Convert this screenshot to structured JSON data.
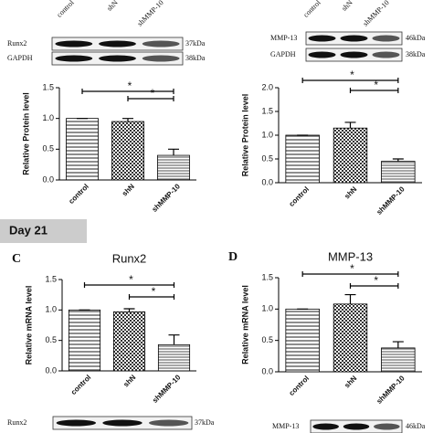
{
  "chart_data": [
    {
      "type": "bar",
      "y_label": "Relative Protein level",
      "categories": [
        "control",
        "shN",
        "shMMP-10"
      ],
      "values": [
        1.0,
        0.95,
        0.4
      ],
      "errors": [
        0,
        0.05,
        0.1
      ],
      "ylim": [
        0,
        1.5
      ],
      "yticks": [
        {
          "value": 0,
          "label": "0.0"
        },
        0.5,
        {
          "value": 1,
          "label": "1.0"
        },
        1.5
      ],
      "annotations": [
        "*",
        "*"
      ]
    },
    {
      "type": "bar",
      "y_label": "Relative Protein level",
      "categories": [
        "control",
        "shN",
        "shMMP-10"
      ],
      "values": [
        1.0,
        1.15,
        0.45
      ],
      "errors": [
        0,
        0.12,
        0.05
      ],
      "ylim": [
        0,
        2
      ],
      "yticks": [
        {
          "value": 0,
          "label": "0.0"
        },
        0.5,
        {
          "value": 1,
          "label": "1.0"
        },
        1.5,
        {
          "value": 2,
          "label": "2.0"
        }
      ],
      "annotations": [
        "*",
        "*"
      ]
    },
    {
      "type": "bar",
      "panel": "C",
      "title": "Runx2",
      "y_label": "Relative mRNA level",
      "categories": [
        "control",
        "shN",
        "shMMP-10"
      ],
      "values": [
        1.0,
        0.97,
        0.43
      ],
      "errors": [
        0,
        0.05,
        0.16
      ],
      "ylim": [
        0,
        1.5
      ],
      "yticks": [
        {
          "value": 0,
          "label": "0.0"
        },
        0.5,
        {
          "value": 1,
          "label": "1.0"
        },
        1.5
      ],
      "annotations": [
        "*",
        "*"
      ]
    },
    {
      "type": "bar",
      "panel": "D",
      "title": "MMP-13",
      "y_label": "Relative mRNA level",
      "categories": [
        "control",
        "shN",
        "shMMP-10"
      ],
      "values": [
        1.0,
        1.08,
        0.38
      ],
      "errors": [
        0,
        0.15,
        0.1
      ],
      "ylim": [
        0,
        1.5
      ],
      "yticks": [
        {
          "value": 0,
          "label": "0.0"
        },
        0.5,
        {
          "value": 1,
          "label": "1.0"
        },
        1.5
      ],
      "annotations": [
        "*",
        "*"
      ]
    }
  ],
  "section_label": "Day 21",
  "blots": {
    "top_left": {
      "lanes": [
        "control",
        "shN",
        "shMMP-10"
      ],
      "rows": [
        {
          "protein": "Runx2",
          "size": "37kDa"
        },
        {
          "protein": "GAPDH",
          "size": "38kDa"
        }
      ]
    },
    "top_right": {
      "lanes": [
        "control",
        "shN",
        "shMMP-10"
      ],
      "rows": [
        {
          "protein": "MMP-13",
          "size": "46kDa"
        },
        {
          "protein": "GAPDH",
          "size": "38kDa"
        }
      ]
    },
    "bottom_left": {
      "rows": [
        {
          "protein": "Runx2",
          "size": "37kDa"
        }
      ]
    },
    "bottom_right": {
      "rows": [
        {
          "protein": "MMP-13",
          "size": "46kDa"
        }
      ]
    }
  }
}
